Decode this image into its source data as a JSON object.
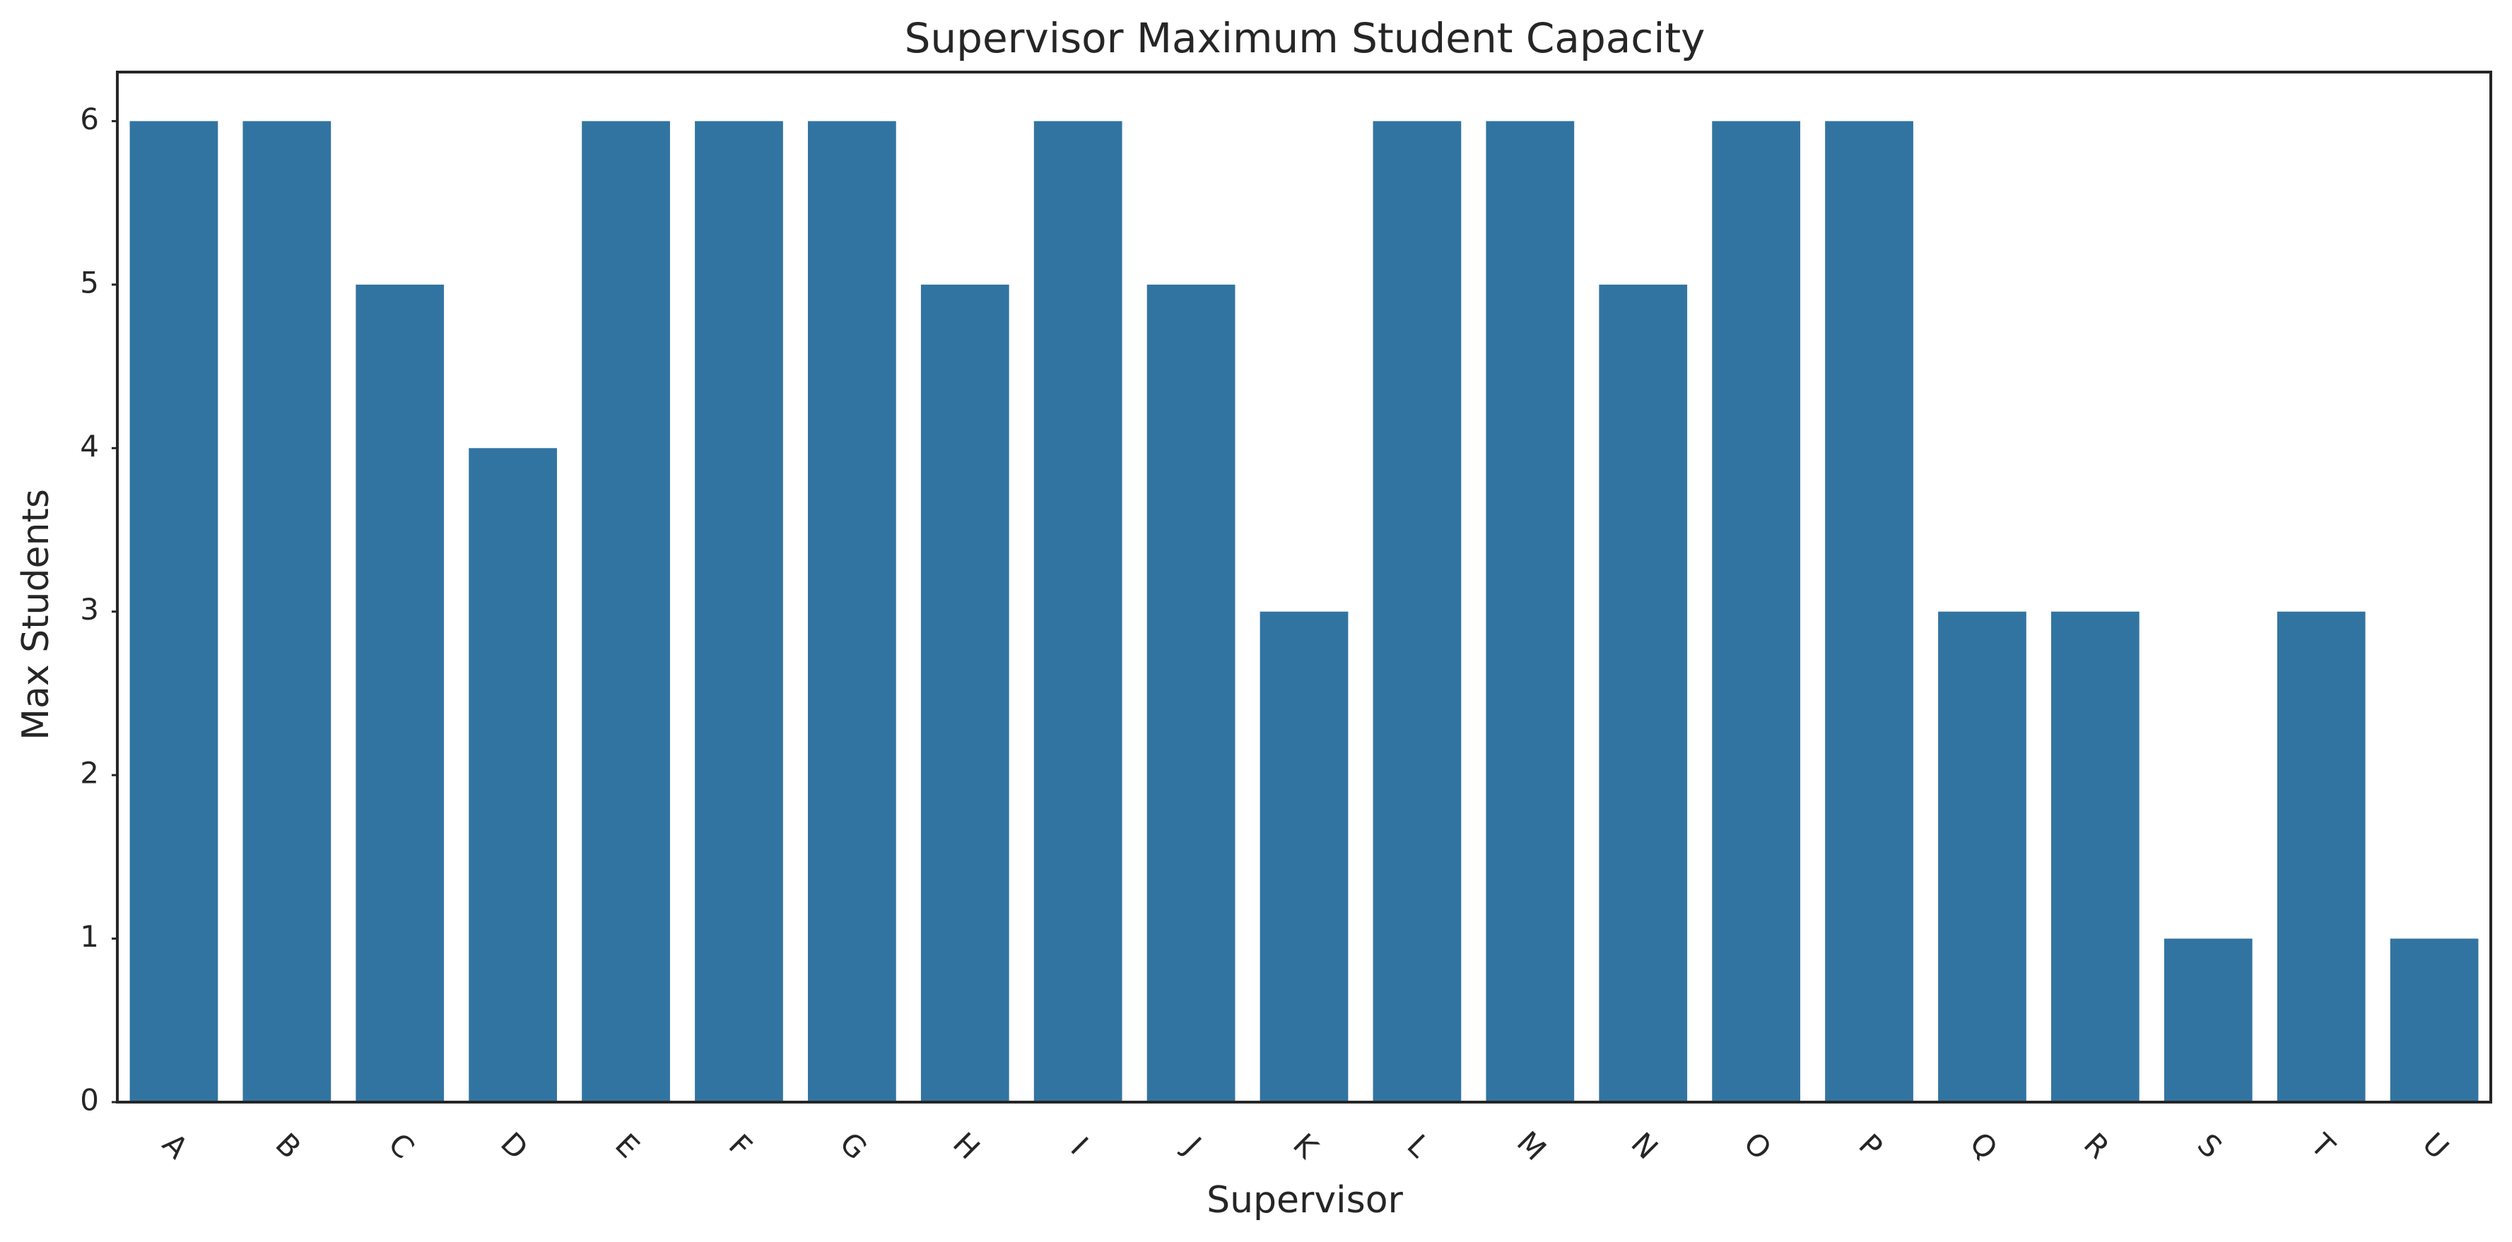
{
  "chart_data": {
    "type": "bar",
    "title": "Supervisor Maximum Student Capacity",
    "xlabel": "Supervisor",
    "ylabel": "Max Students",
    "categories": [
      "A",
      "B",
      "C",
      "D",
      "E",
      "F",
      "G",
      "H",
      "I",
      "J",
      "K",
      "L",
      "M",
      "N",
      "O",
      "P",
      "Q",
      "R",
      "S",
      "T",
      "U"
    ],
    "values": [
      6,
      6,
      5,
      4,
      6,
      6,
      6,
      5,
      6,
      5,
      3,
      6,
      6,
      5,
      6,
      6,
      3,
      3,
      1,
      3,
      1
    ],
    "ylim": [
      0,
      6.3
    ],
    "yticks": [
      0,
      1,
      2,
      3,
      4,
      5,
      6
    ],
    "grid": false,
    "bar_color": "#3274a1",
    "xtick_rotation": 45
  }
}
